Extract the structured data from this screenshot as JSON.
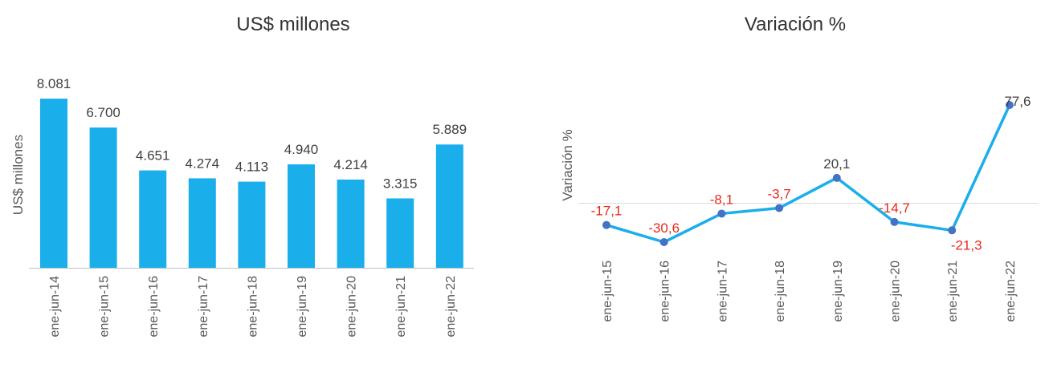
{
  "chart_data": [
    {
      "type": "bar",
      "title": "US$ millones",
      "ylabel": "US$ millones",
      "xlabel": "",
      "categories": [
        "ene-jun-14",
        "ene-jun-15",
        "ene-jun-16",
        "ene-jun-17",
        "ene-jun-18",
        "ene-jun-19",
        "ene-jun-20",
        "ene-jun-21",
        "ene-jun-22"
      ],
      "values": [
        8081,
        6700,
        4651,
        4274,
        4113,
        4940,
        4214,
        3315,
        5889
      ],
      "data_labels": [
        "8.081",
        "6.700",
        "4.651",
        "4.274",
        "4.113",
        "4.940",
        "4.214",
        "3.315",
        "5.889"
      ],
      "ylim": [
        0,
        8081
      ],
      "grid": false,
      "legend": "none",
      "colors": {
        "bar": "#1aaeeb",
        "axis": "#bfbfbf"
      }
    },
    {
      "type": "line",
      "title": "Variación %",
      "ylabel": "Variación %",
      "xlabel": "",
      "categories": [
        "ene-jun-15",
        "ene-jun-16",
        "ene-jun-17",
        "ene-jun-18",
        "ene-jun-19",
        "ene-jun-20",
        "ene-jun-21",
        "ene-jun-22"
      ],
      "values": [
        -17.1,
        -30.6,
        -8.1,
        -3.7,
        20.1,
        -14.7,
        -21.3,
        77.6
      ],
      "data_labels": [
        "-17,1",
        "-30,6",
        "-8,1",
        "-3,7",
        "20,1",
        "-14,7",
        "-21,3",
        "77,6"
      ],
      "ylim": [
        -32,
        78
      ],
      "zero_line": true,
      "grid": false,
      "legend": "none",
      "colors": {
        "line": "#1aaeeb",
        "marker": "#4472c4",
        "negative_label": "#e8291c",
        "positive_label": "#404040",
        "zero_line": "#d9d9d9"
      }
    }
  ]
}
